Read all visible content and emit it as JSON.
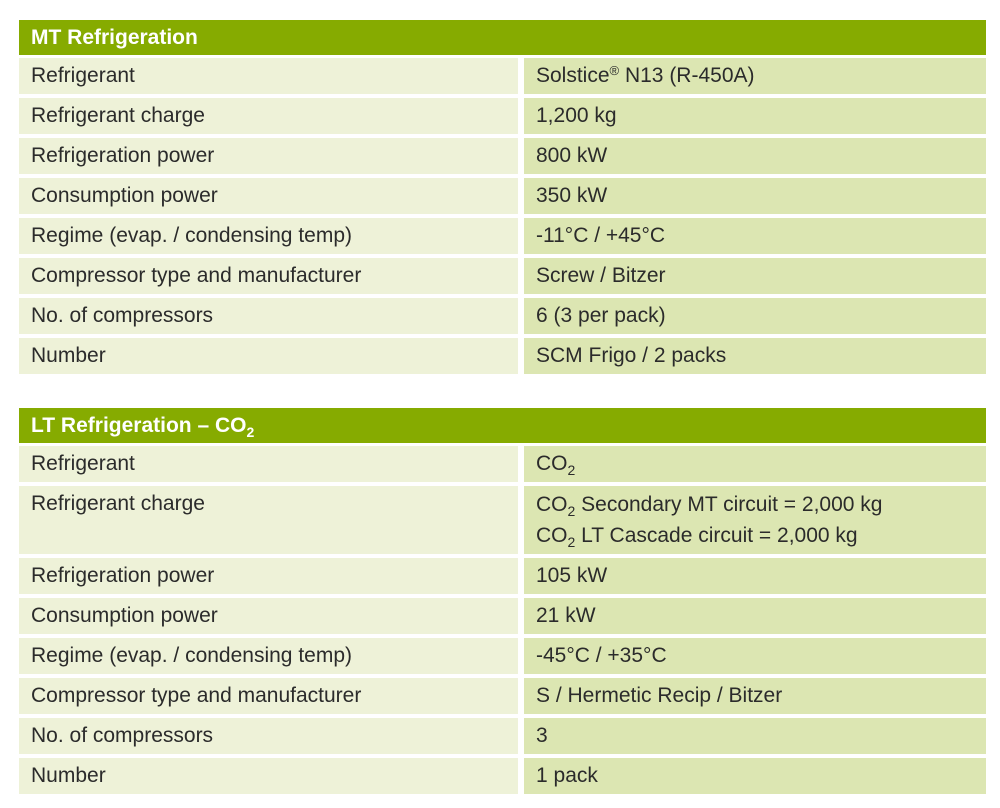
{
  "mt": {
    "title": "MT Refrigeration",
    "rows": [
      {
        "label": "Refrigerant",
        "value_main": "Solstice",
        "value_sup": "®",
        "value_rest": " N13 (R-450A)"
      },
      {
        "label": "Refrigerant charge",
        "value": "1,200 kg"
      },
      {
        "label": "Refrigeration power",
        "value": "800 kW"
      },
      {
        "label": "Consumption power",
        "value": "350 kW"
      },
      {
        "label": "Regime (evap. / condensing temp)",
        "value": "-11°C / +45°C"
      },
      {
        "label": "Compressor type and manufacturer",
        "value": "Screw / Bitzer"
      },
      {
        "label": "No. of compressors",
        "value": "6 (3 per pack)"
      },
      {
        "label": "Number",
        "value": "SCM Frigo / 2 packs"
      }
    ]
  },
  "lt": {
    "title_main": "LT Refrigeration – CO",
    "title_sub": "2",
    "rows": [
      {
        "label": "Refrigerant",
        "value_main": "CO",
        "value_sub": "2"
      },
      {
        "label": "Refrigerant charge",
        "line1_main": "CO",
        "line1_sub": "2",
        "line1_rest": " Secondary MT circuit = 2,000 kg",
        "line2_main": "CO",
        "line2_sub": "2",
        "line2_rest": " LT Cascade circuit = 2,000 kg"
      },
      {
        "label": "Refrigeration power",
        "value": "105 kW"
      },
      {
        "label": "Consumption power",
        "value": "21 kW"
      },
      {
        "label": "Regime (evap. / condensing temp)",
        "value": "-45°C / +35°C"
      },
      {
        "label": "Compressor type and manufacturer",
        "value": "S / Hermetic Recip / Bitzer"
      },
      {
        "label": "No. of compressors",
        "value": "3"
      },
      {
        "label": "Number",
        "value": "1 pack"
      }
    ]
  }
}
